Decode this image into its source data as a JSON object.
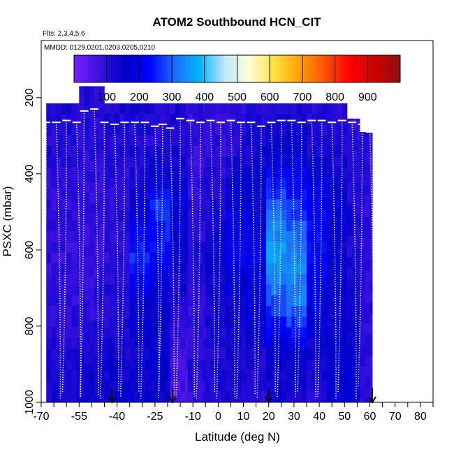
{
  "chart_data": {
    "type": "heatmap",
    "title": "ATOM2 Southbound HCN_CIT",
    "flights_label": "Flts: 2,3,4,5,6",
    "dates_label": "MMDD: 0129,0201,0203,0205,0210",
    "xlabel": "Latitude (deg N)",
    "ylabel": "PSXC (mbar)",
    "xlim": [
      -70,
      85
    ],
    "ylim": [
      1000,
      50
    ],
    "x_ticks": [
      -70,
      -55,
      -40,
      -25,
      -10,
      0,
      10,
      20,
      30,
      40,
      50,
      60,
      70,
      80
    ],
    "y_ticks": [
      200,
      400,
      600,
      800,
      1000
    ],
    "colorbar": {
      "range": [
        0,
        1000
      ],
      "ticks": [
        100,
        200,
        300,
        400,
        500,
        600,
        700,
        800,
        900
      ],
      "colors": [
        "#7a1fff",
        "#3a10e0",
        "#0000c8",
        "#0000ff",
        "#1f6bff",
        "#00b4ff",
        "#bfe8ff",
        "#ffffd8",
        "#ffe040",
        "#ffa000",
        "#ff5000",
        "#ff0000",
        "#cc0000",
        "#901010"
      ]
    },
    "arrows_latitude": [
      -42,
      -18,
      20,
      61
    ],
    "columns": [
      {
        "lat0": -68,
        "lat1": -55,
        "ptop": 215,
        "base": [
          120,
          110,
          95,
          90,
          95,
          115,
          140
        ]
      },
      {
        "lat0": -55,
        "lat1": -45,
        "ptop": 170,
        "base": [
          110,
          105,
          90,
          90,
          95,
          120,
          150
        ]
      },
      {
        "lat0": -45,
        "lat1": -35,
        "ptop": 215,
        "base": [
          120,
          110,
          95,
          100,
          110,
          130,
          160
        ]
      },
      {
        "lat0": -35,
        "lat1": -27,
        "ptop": 215,
        "base": [
          115,
          110,
          150,
          260,
          170,
          140,
          150
        ]
      },
      {
        "lat0": -27,
        "lat1": -19,
        "ptop": 215,
        "base": [
          110,
          120,
          260,
          230,
          150,
          160,
          140
        ]
      },
      {
        "lat0": -19,
        "lat1": -12,
        "ptop": 215,
        "base": [
          110,
          120,
          180,
          150,
          120,
          70,
          60
        ]
      },
      {
        "lat0": -12,
        "lat1": -5,
        "ptop": 215,
        "base": [
          95,
          90,
          100,
          110,
          90,
          105,
          90
        ]
      },
      {
        "lat0": -5,
        "lat1": 3,
        "ptop": 215,
        "base": [
          90,
          95,
          120,
          150,
          130,
          120,
          110
        ]
      },
      {
        "lat0": 3,
        "lat1": 11,
        "ptop": 215,
        "base": [
          100,
          110,
          170,
          210,
          140,
          130,
          120
        ]
      },
      {
        "lat0": 11,
        "lat1": 19,
        "ptop": 215,
        "base": [
          110,
          130,
          160,
          200,
          170,
          120,
          110
        ]
      },
      {
        "lat0": 19,
        "lat1": 27,
        "ptop": 215,
        "base": [
          110,
          160,
          300,
          360,
          280,
          150,
          120
        ]
      },
      {
        "lat0": 27,
        "lat1": 35,
        "ptop": 215,
        "base": [
          110,
          170,
          260,
          340,
          320,
          160,
          130
        ]
      },
      {
        "lat0": 35,
        "lat1": 43,
        "ptop": 215,
        "base": [
          100,
          130,
          220,
          230,
          190,
          130,
          110
        ]
      },
      {
        "lat0": 43,
        "lat1": 51,
        "ptop": 215,
        "base": [
          100,
          120,
          170,
          150,
          140,
          150,
          170
        ]
      },
      {
        "lat0": 51,
        "lat1": 56,
        "ptop": 255,
        "base": [
          100,
          110,
          120,
          110,
          130,
          160,
          180
        ]
      },
      {
        "lat0": 56,
        "lat1": 61,
        "ptop": 290,
        "base": [
          95,
          100,
          100,
          100,
          100,
          100,
          90
        ]
      }
    ],
    "profiles": [
      {
        "lat": -68,
        "ptop": 265,
        "pbot": 985
      },
      {
        "lat": -64,
        "ptop": 265,
        "pbot": 990
      },
      {
        "lat": -60,
        "ptop": 260,
        "pbot": 975
      },
      {
        "lat": -56,
        "ptop": 265,
        "pbot": 985
      },
      {
        "lat": -53,
        "ptop": 235,
        "pbot": 990
      },
      {
        "lat": -49,
        "ptop": 230,
        "pbot": 980
      },
      {
        "lat": -45,
        "ptop": 265,
        "pbot": 990
      },
      {
        "lat": -41,
        "ptop": 270,
        "pbot": 970
      },
      {
        "lat": -37,
        "ptop": 265,
        "pbot": 985
      },
      {
        "lat": -33,
        "ptop": 265,
        "pbot": 975
      },
      {
        "lat": -29,
        "ptop": 265,
        "pbot": 990
      },
      {
        "lat": -25,
        "ptop": 275,
        "pbot": 970
      },
      {
        "lat": -22,
        "ptop": 270,
        "pbot": 990
      },
      {
        "lat": -19,
        "ptop": 280,
        "pbot": 980
      },
      {
        "lat": -15,
        "ptop": 255,
        "pbot": 990
      },
      {
        "lat": -11,
        "ptop": 260,
        "pbot": 985
      },
      {
        "lat": -7,
        "ptop": 265,
        "pbot": 990
      },
      {
        "lat": -3,
        "ptop": 260,
        "pbot": 975
      },
      {
        "lat": 1,
        "ptop": 265,
        "pbot": 990
      },
      {
        "lat": 5,
        "ptop": 260,
        "pbot": 985
      },
      {
        "lat": 9,
        "ptop": 265,
        "pbot": 990
      },
      {
        "lat": 13,
        "ptop": 265,
        "pbot": 980
      },
      {
        "lat": 17,
        "ptop": 275,
        "pbot": 990
      },
      {
        "lat": 21,
        "ptop": 265,
        "pbot": 975
      },
      {
        "lat": 25,
        "ptop": 260,
        "pbot": 990
      },
      {
        "lat": 29,
        "ptop": 260,
        "pbot": 985
      },
      {
        "lat": 33,
        "ptop": 265,
        "pbot": 975
      },
      {
        "lat": 37,
        "ptop": 260,
        "pbot": 990
      },
      {
        "lat": 41,
        "ptop": 260,
        "pbot": 985
      },
      {
        "lat": 45,
        "ptop": 265,
        "pbot": 990
      },
      {
        "lat": 49,
        "ptop": 260,
        "pbot": 975
      },
      {
        "lat": 53,
        "ptop": 265,
        "pbot": 990
      },
      {
        "lat": 57,
        "ptop": 270,
        "pbot": 960
      },
      {
        "lat": 60,
        "ptop": 290,
        "pbot": 980
      }
    ]
  }
}
